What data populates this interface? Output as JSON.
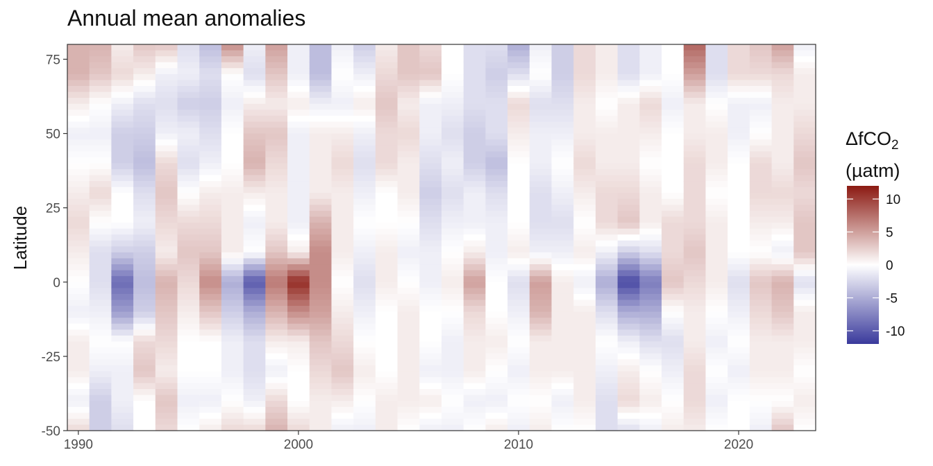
{
  "chart_data": {
    "type": "heatmap",
    "title": "Annual mean anomalies",
    "xlabel": "",
    "ylabel": "Latitude",
    "x_ticks": [
      1990,
      2000,
      2010,
      2020
    ],
    "y_ticks": [
      75,
      50,
      25,
      0,
      -25,
      -50
    ],
    "xlim": [
      1989.5,
      2023.5
    ],
    "ylim": [
      -50,
      80
    ],
    "legend": {
      "title_main": "ΔfCO",
      "title_sub": "2",
      "title_unit": "(µatm)",
      "placement": "right",
      "ticks": [
        10,
        5,
        0,
        -5,
        -10
      ],
      "range": [
        -12,
        12
      ],
      "colors": {
        "low": "#3a3a9c",
        "mid": "#ffffff",
        "high": "#8b1a12"
      }
    },
    "latitude_bands": [
      80,
      70,
      60,
      50,
      40,
      30,
      20,
      10,
      0,
      -10,
      -20,
      -30,
      -40,
      -50
    ],
    "years": [
      1990,
      1991,
      1992,
      1993,
      1994,
      1995,
      1996,
      1997,
      1998,
      1999,
      2000,
      2001,
      2002,
      2003,
      2004,
      2005,
      2006,
      2007,
      2008,
      2009,
      2010,
      2011,
      2012,
      2013,
      2014,
      2015,
      2016,
      2017,
      2018,
      2019,
      2020,
      2021,
      2022,
      2023
    ],
    "series": [
      {
        "x": 1990,
        "values": [
          4,
          4,
          1,
          -1,
          0,
          1,
          2,
          1,
          0,
          -1,
          1,
          1,
          -1,
          2
        ]
      },
      {
        "x": 1991,
        "values": [
          4,
          3,
          0,
          -1,
          0,
          2,
          0,
          -2,
          -2,
          -1,
          0,
          -1,
          -3,
          -3
        ]
      },
      {
        "x": 1992,
        "values": [
          1,
          2,
          -1,
          -3,
          -3,
          0,
          0,
          -3,
          -9,
          -6,
          0,
          -1,
          -1,
          -2
        ]
      },
      {
        "x": 1993,
        "values": [
          3,
          1,
          -2,
          -3,
          -4,
          -2,
          -1,
          -3,
          -4,
          -3,
          2,
          3,
          0,
          0
        ]
      },
      {
        "x": 1994,
        "values": [
          3,
          -1,
          -2,
          -1,
          2,
          3,
          2,
          1,
          4,
          3,
          2,
          1,
          3,
          2
        ]
      },
      {
        "x": 1995,
        "values": [
          -2,
          -1,
          -3,
          -1,
          -2,
          0,
          2,
          3,
          2,
          1,
          0,
          0,
          -1,
          0
        ]
      },
      {
        "x": 1996,
        "values": [
          -4,
          -2,
          -3,
          -2,
          -1,
          1,
          2,
          3,
          6,
          3,
          0,
          0,
          -1,
          1
        ]
      },
      {
        "x": 1997,
        "values": [
          6,
          0,
          -1,
          0,
          0,
          1,
          1,
          1,
          -5,
          -3,
          -1,
          -1,
          0,
          2
        ]
      },
      {
        "x": 1998,
        "values": [
          -1,
          -2,
          1,
          3,
          4,
          1,
          -1,
          0,
          -10,
          -5,
          -2,
          -2,
          -1,
          2
        ]
      },
      {
        "x": 1999,
        "values": [
          5,
          3,
          1,
          3,
          2,
          1,
          1,
          3,
          7,
          4,
          1,
          -1,
          2,
          4
        ]
      },
      {
        "x": 2000,
        "values": [
          -1,
          -1,
          1,
          -1,
          -1,
          -1,
          -1,
          1,
          11,
          6,
          1,
          0,
          0,
          2
        ]
      },
      {
        "x": 2001,
        "values": [
          -4,
          -4,
          -1,
          1,
          1,
          1,
          4,
          6,
          6,
          5,
          3,
          2,
          1,
          1
        ]
      },
      {
        "x": 2002,
        "values": [
          -1,
          0,
          -1,
          1,
          2,
          1,
          1,
          1,
          0,
          1,
          2,
          3,
          1,
          -1
        ]
      },
      {
        "x": 2003,
        "values": [
          -3,
          -1,
          1,
          -1,
          -2,
          -1,
          0,
          -1,
          -2,
          -1,
          0,
          1,
          0,
          -1
        ]
      },
      {
        "x": 2004,
        "values": [
          1,
          2,
          3,
          2,
          2,
          0,
          0,
          1,
          1,
          0,
          0,
          0,
          1,
          1
        ]
      },
      {
        "x": 2005,
        "values": [
          3,
          3,
          1,
          2,
          1,
          1,
          0,
          -1,
          0,
          1,
          1,
          1,
          1,
          0
        ]
      },
      {
        "x": 2006,
        "values": [
          2,
          3,
          -1,
          -1,
          -2,
          -3,
          -2,
          -1,
          -1,
          0,
          0,
          -1,
          1,
          -1
        ]
      },
      {
        "x": 2007,
        "values": [
          0,
          0,
          -1,
          -2,
          -1,
          -2,
          -1,
          0,
          1,
          0,
          -1,
          -1,
          0,
          -1
        ]
      },
      {
        "x": 2008,
        "values": [
          -2,
          -2,
          -2,
          -3,
          -3,
          -1,
          -1,
          1,
          5,
          2,
          1,
          1,
          -1,
          0
        ]
      },
      {
        "x": 2009,
        "values": [
          -2,
          -3,
          -2,
          -2,
          -4,
          -2,
          -1,
          -1,
          0,
          0,
          1,
          0,
          -1,
          1
        ]
      },
      {
        "x": 2010,
        "values": [
          -5,
          -2,
          2,
          1,
          0,
          0,
          0,
          1,
          -2,
          -1,
          0,
          -1,
          0,
          -1
        ]
      },
      {
        "x": 2011,
        "values": [
          -1,
          0,
          -2,
          -1,
          -1,
          -2,
          -2,
          -1,
          5,
          4,
          1,
          1,
          0,
          1
        ]
      },
      {
        "x": 2012,
        "values": [
          -3,
          -3,
          -2,
          -1,
          0,
          -1,
          -2,
          -1,
          1,
          1,
          1,
          1,
          -1,
          0
        ]
      },
      {
        "x": 2013,
        "values": [
          2,
          2,
          1,
          1,
          2,
          1,
          0,
          1,
          -1,
          1,
          1,
          1,
          1,
          0
        ]
      },
      {
        "x": 2014,
        "values": [
          1,
          1,
          0,
          1,
          1,
          2,
          2,
          -1,
          -5,
          -2,
          0,
          -1,
          -2,
          -2
        ]
      },
      {
        "x": 2015,
        "values": [
          -2,
          -2,
          1,
          1,
          1,
          2,
          3,
          -3,
          -11,
          -5,
          -1,
          1,
          2,
          -2
        ]
      },
      {
        "x": 2016,
        "values": [
          -1,
          -1,
          2,
          1,
          0,
          1,
          1,
          -2,
          -8,
          -5,
          -2,
          0,
          1,
          -1
        ]
      },
      {
        "x": 2017,
        "values": [
          0,
          0,
          -1,
          0,
          0,
          0,
          2,
          2,
          3,
          0,
          -2,
          -1,
          0,
          1
        ]
      },
      {
        "x": 2018,
        "values": [
          8,
          5,
          1,
          1,
          2,
          2,
          2,
          3,
          2,
          1,
          1,
          2,
          2,
          1
        ]
      },
      {
        "x": 2019,
        "values": [
          -2,
          -2,
          0,
          1,
          1,
          0,
          1,
          1,
          1,
          0,
          -1,
          0,
          -1,
          0
        ]
      },
      {
        "x": 2020,
        "values": [
          2,
          2,
          -1,
          -1,
          0,
          0,
          0,
          0,
          -2,
          -1,
          0,
          -1,
          0,
          0
        ]
      },
      {
        "x": 2021,
        "values": [
          3,
          2,
          -1,
          0,
          2,
          2,
          1,
          0,
          3,
          2,
          1,
          1,
          0,
          -1
        ]
      },
      {
        "x": 2022,
        "values": [
          5,
          2,
          1,
          1,
          1,
          2,
          1,
          -1,
          4,
          3,
          1,
          1,
          0,
          3
        ]
      },
      {
        "x": 2023,
        "values": [
          -1,
          1,
          1,
          2,
          3,
          2,
          3,
          3,
          -2,
          1,
          1,
          0,
          1,
          0
        ]
      }
    ]
  }
}
